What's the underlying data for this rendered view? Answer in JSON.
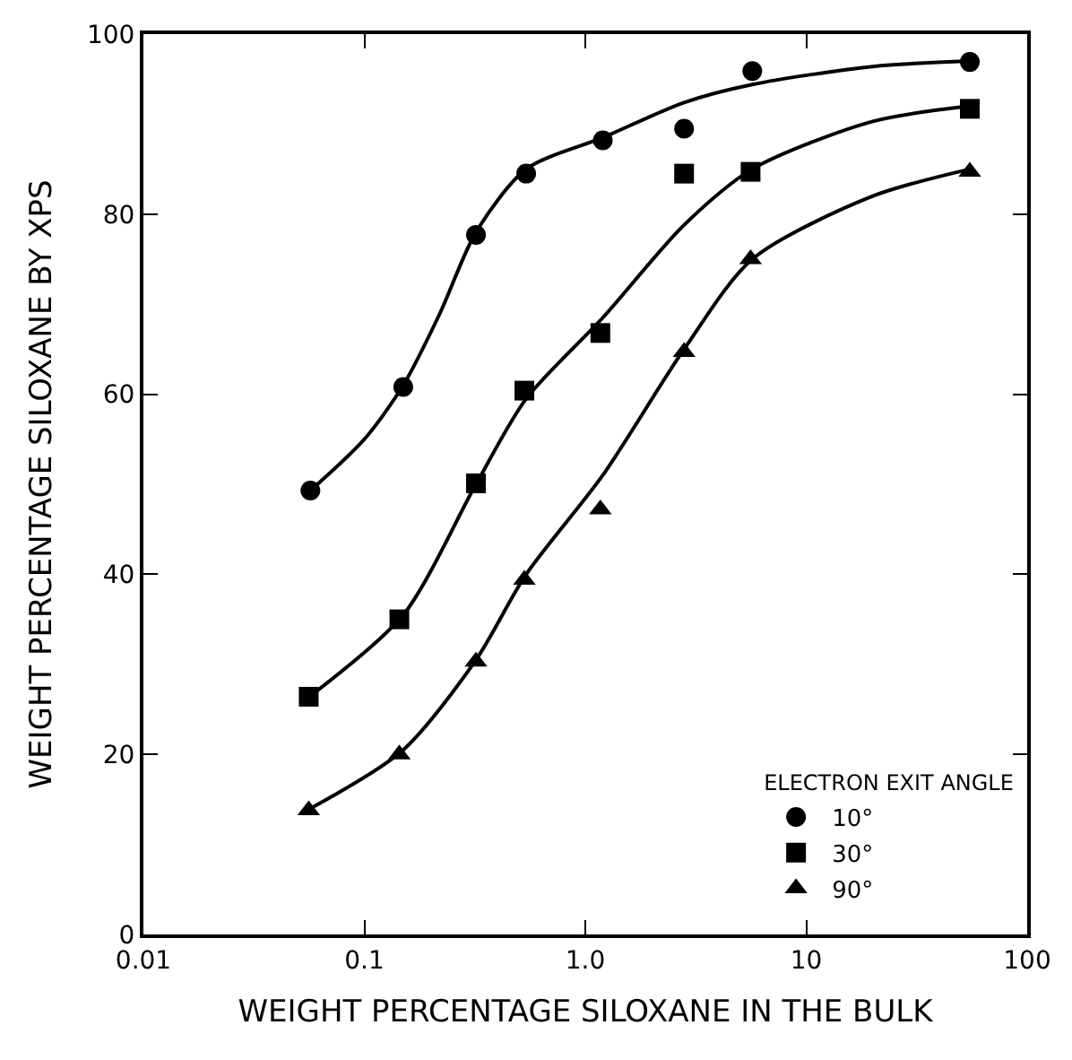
{
  "chart_data": {
    "type": "scatter",
    "xlabel": "WEIGHT PERCENTAGE SILOXANE IN THE BULK",
    "ylabel": "WEIGHT PERCENTAGE SILOXANE BY XPS",
    "legend_title": "ELECTRON EXIT ANGLE",
    "log": "x",
    "legend": "bottom right",
    "xlim": [
      0.01,
      100
    ],
    "xticks": [
      0.01,
      0.1,
      {
        "value": 1,
        "label": "1.0"
      },
      10,
      100
    ],
    "ylim": [
      0,
      100
    ],
    "yticks": [
      0,
      20,
      40,
      60,
      80,
      100
    ],
    "series": [
      {
        "name": "10°",
        "color": "#000000",
        "marker": "circle",
        "x": [
          0.057,
          0.15,
          0.32,
          0.54,
          1.2,
          2.8,
          5.7,
          55
        ],
        "values": [
          49.3,
          60.8,
          77.7,
          84.5,
          88.2,
          89.5,
          95.9,
          96.9
        ]
      },
      {
        "name": "30°",
        "color": "#000000",
        "marker": "square",
        "x": [
          0.056,
          0.144,
          0.32,
          0.53,
          1.17,
          2.8,
          5.6,
          55
        ],
        "values": [
          26.4,
          35.0,
          50.1,
          60.4,
          66.8,
          84.5,
          84.7,
          91.7
        ]
      },
      {
        "name": "90°",
        "color": "#000000",
        "marker": "triangle",
        "x": [
          0.056,
          0.144,
          0.32,
          0.53,
          1.17,
          2.8,
          5.6,
          55
        ],
        "values": [
          13.8,
          20.0,
          30.3,
          39.4,
          47.2,
          64.7,
          75.0,
          84.7
        ]
      },
      {
        "type": "line",
        "color": "#000000",
        "marker": "none",
        "line_style": "solid",
        "x": [
          0.057,
          0.1,
          0.15,
          0.22,
          0.32,
          0.54,
          1.2,
          2.8,
          5.7,
          20,
          55
        ],
        "values": [
          49.3,
          55,
          61,
          69,
          78,
          85,
          88.5,
          92.4,
          94.4,
          96.4,
          97
        ]
      },
      {
        "type": "line",
        "color": "#000000",
        "marker": "none",
        "line_style": "solid",
        "x": [
          0.057,
          0.15,
          0.32,
          0.54,
          1.2,
          2.8,
          5.7,
          20,
          55
        ],
        "values": [
          26.5,
          35.5,
          50,
          59.5,
          68.5,
          78.8,
          85,
          90.3,
          92
        ]
      },
      {
        "type": "line",
        "color": "#000000",
        "marker": "none",
        "line_style": "solid",
        "x": [
          0.057,
          0.15,
          0.32,
          0.54,
          1.2,
          2.8,
          5.7,
          20,
          55
        ],
        "values": [
          14,
          20.5,
          30.5,
          40,
          51,
          65,
          75,
          82,
          85
        ]
      }
    ]
  }
}
